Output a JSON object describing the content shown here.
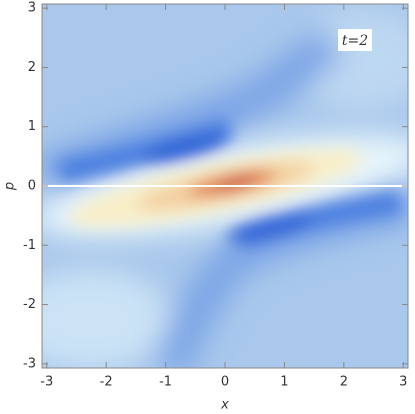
{
  "chart_data": {
    "type": "density",
    "xlabel": "x",
    "ylabel": "p",
    "annotation": "t=2",
    "xlim": [
      -3.08,
      3.08
    ],
    "ylim": [
      -3.07,
      3.07
    ],
    "xticks": [
      -3,
      -2,
      -1,
      0,
      1,
      2,
      3
    ],
    "yticks": [
      -3,
      -2,
      -1,
      0,
      1,
      2,
      3
    ]
  }
}
